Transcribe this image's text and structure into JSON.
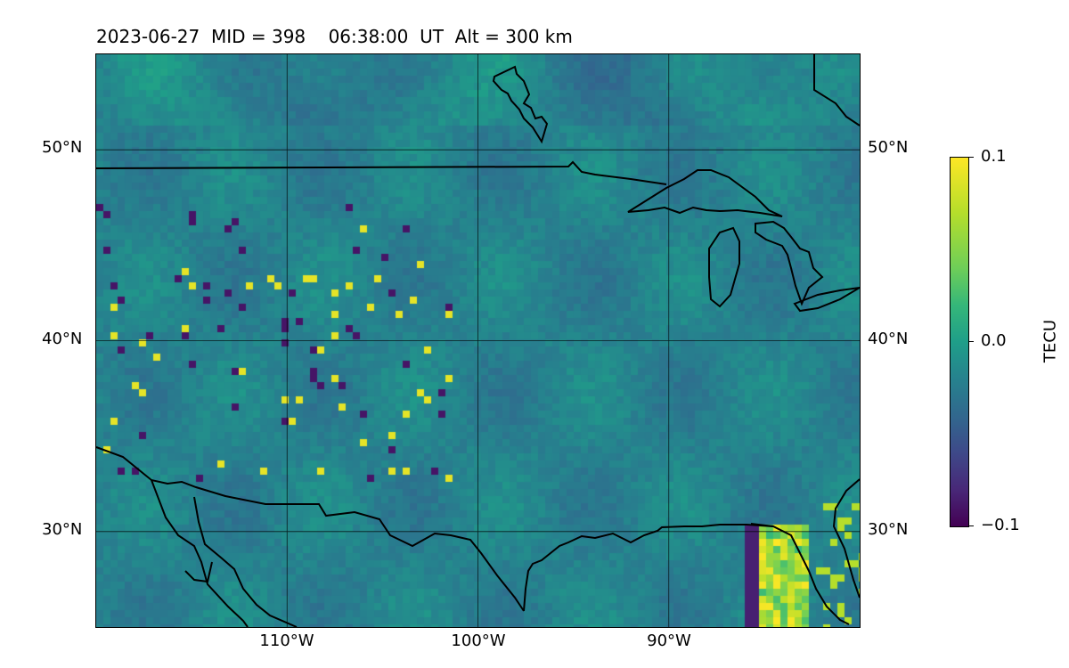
{
  "title": "2023-06-27  MID = 398    06:38:00  UT  Alt = 300 km",
  "map": {
    "extent": {
      "lon_min": -120,
      "lon_max": -80,
      "lat_min": 25,
      "lat_max": 55
    },
    "lat_ticks": [
      {
        "value": 50,
        "label": "50°N"
      },
      {
        "value": 40,
        "label": "40°N"
      },
      {
        "value": 30,
        "label": "30°N"
      }
    ],
    "lon_ticks": [
      {
        "value": -110,
        "label": "110°W"
      },
      {
        "value": -100,
        "label": "100°W"
      },
      {
        "value": -90,
        "label": "90°W"
      }
    ],
    "gridlines": true,
    "colormap": "viridis"
  },
  "colorbar": {
    "label": "TECU",
    "min": -0.1,
    "max": 0.1,
    "ticks": [
      {
        "value": 0.1,
        "label": "0.1"
      },
      {
        "value": 0.0,
        "label": "0.0"
      },
      {
        "value": -0.1,
        "label": "−0.1"
      }
    ]
  }
}
